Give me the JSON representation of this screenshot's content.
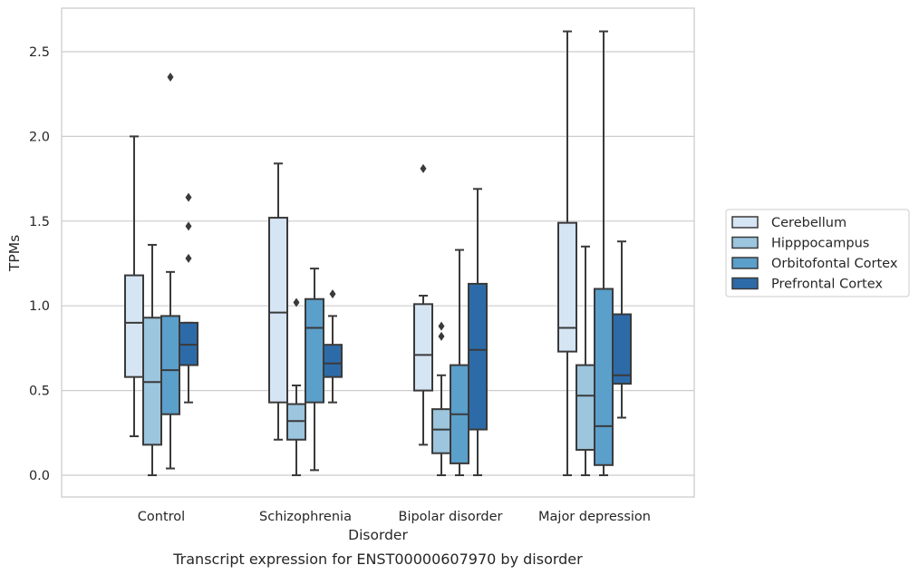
{
  "chart_data": {
    "type": "box",
    "caption": "Transcript expression for ENST00000607970 by disorder",
    "xlabel": "Disorder",
    "ylabel": "TPMs",
    "ylim": [
      -0.12,
      2.7
    ],
    "yticks": [
      "0.0",
      "0.5",
      "1.0",
      "1.5",
      "2.0",
      "2.5"
    ],
    "ytick_values": [
      0.0,
      0.5,
      1.0,
      1.5,
      2.0,
      2.5
    ],
    "grid": true,
    "legend_position": "right",
    "categories": [
      "Control",
      "Schizophrenia",
      "Bipolar disorder",
      "Major depression"
    ],
    "series": [
      {
        "name": "Cerebellum",
        "color": "#d6e5f4",
        "boxes": [
          {
            "whislo": 0.23,
            "q1": 0.58,
            "med": 0.9,
            "q3": 1.18,
            "whishi": 2.0,
            "fliers": []
          },
          {
            "whislo": 0.21,
            "q1": 0.43,
            "med": 0.96,
            "q3": 1.52,
            "whishi": 1.84,
            "fliers": []
          },
          {
            "whislo": 0.18,
            "q1": 0.5,
            "med": 0.71,
            "q3": 1.01,
            "whishi": 1.06,
            "fliers": [
              1.81
            ]
          },
          {
            "whislo": 0.0,
            "q1": 0.73,
            "med": 0.87,
            "q3": 1.49,
            "whishi": 2.62,
            "fliers": []
          }
        ]
      },
      {
        "name": "Hipppocampus",
        "color": "#9cc5de",
        "boxes": [
          {
            "whislo": 0.0,
            "q1": 0.18,
            "med": 0.55,
            "q3": 0.93,
            "whishi": 1.36,
            "fliers": []
          },
          {
            "whislo": 0.0,
            "q1": 0.21,
            "med": 0.32,
            "q3": 0.42,
            "whishi": 0.53,
            "fliers": [
              1.02
            ]
          },
          {
            "whislo": 0.0,
            "q1": 0.13,
            "med": 0.27,
            "q3": 0.39,
            "whishi": 0.59,
            "fliers": [
              0.82,
              0.88
            ]
          },
          {
            "whislo": 0.0,
            "q1": 0.15,
            "med": 0.47,
            "q3": 0.65,
            "whishi": 1.35,
            "fliers": []
          }
        ]
      },
      {
        "name": "Orbitofontal Cortex",
        "color": "#5b9fcb",
        "boxes": [
          {
            "whislo": 0.04,
            "q1": 0.36,
            "med": 0.62,
            "q3": 0.94,
            "whishi": 1.2,
            "fliers": [
              2.35
            ]
          },
          {
            "whislo": 0.03,
            "q1": 0.43,
            "med": 0.87,
            "q3": 1.04,
            "whishi": 1.22,
            "fliers": []
          },
          {
            "whislo": 0.0,
            "q1": 0.07,
            "med": 0.36,
            "q3": 0.65,
            "whishi": 1.33,
            "fliers": []
          },
          {
            "whislo": 0.0,
            "q1": 0.06,
            "med": 0.29,
            "q3": 1.1,
            "whishi": 2.62,
            "fliers": []
          }
        ]
      },
      {
        "name": "Prefrontal Cortex",
        "color": "#2d6ba8",
        "boxes": [
          {
            "whislo": 0.43,
            "q1": 0.65,
            "med": 0.77,
            "q3": 0.9,
            "whishi": 0.9,
            "fliers": [
              1.28,
              1.47,
              1.64
            ]
          },
          {
            "whislo": 0.43,
            "q1": 0.58,
            "med": 0.66,
            "q3": 0.77,
            "whishi": 0.94,
            "fliers": [
              1.07
            ]
          },
          {
            "whislo": 0.0,
            "q1": 0.27,
            "med": 0.74,
            "q3": 1.13,
            "whishi": 1.69,
            "fliers": []
          },
          {
            "whislo": 0.34,
            "q1": 0.54,
            "med": 0.59,
            "q3": 0.95,
            "whishi": 1.38,
            "fliers": []
          }
        ]
      }
    ]
  }
}
